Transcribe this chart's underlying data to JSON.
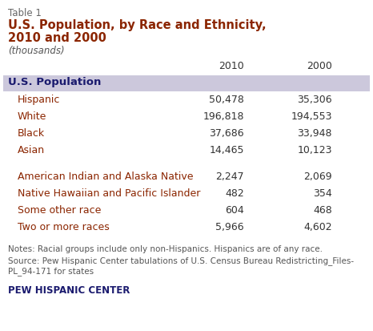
{
  "table_label": "Table 1",
  "title_line1": "U.S. Population, by Race and Ethnicity,",
  "title_line2": "2010 and 2000",
  "subtitle": "(thousands)",
  "col_headers": [
    "2010",
    "2000"
  ],
  "header_row_label": "U.S. Population",
  "header_bg_color": "#ccc8dc",
  "rows_group1": [
    {
      "label": "Hispanic",
      "val2010": "50,478",
      "val2000": "35,306"
    },
    {
      "label": "White",
      "val2010": "196,818",
      "val2000": "194,553"
    },
    {
      "label": "Black",
      "val2010": "37,686",
      "val2000": "33,948"
    },
    {
      "label": "Asian",
      "val2010": "14,465",
      "val2000": "10,123"
    }
  ],
  "rows_group2": [
    {
      "label": "American Indian and Alaska Native",
      "val2010": "2,247",
      "val2000": "2,069"
    },
    {
      "label": "Native Hawaiian and Pacific Islander",
      "val2010": "482",
      "val2000": "354"
    },
    {
      "label": "Some other race",
      "val2010": "604",
      "val2000": "468"
    },
    {
      "label": "Two or more races",
      "val2010": "5,966",
      "val2000": "4,602"
    }
  ],
  "notes_line1": "Notes: Racial groups include only non-Hispanics. Hispanics are of any race.",
  "notes_line2": "Source: Pew Hispanic Center tabulations of U.S. Census Bureau Redistricting_Files-",
  "notes_line3": "PL_94-171 for states",
  "footer": "PEW HISPANIC CENTER",
  "label_color": "#8b2500",
  "header_label_color": "#1a1a6e",
  "number_color": "#333333",
  "table_label_color": "#666666",
  "title_color": "#8b2500",
  "subtitle_color": "#555555",
  "notes_color": "#555555",
  "footer_color": "#1a1a6e",
  "bg_color": "#ffffff",
  "col_header_color": "#333333"
}
